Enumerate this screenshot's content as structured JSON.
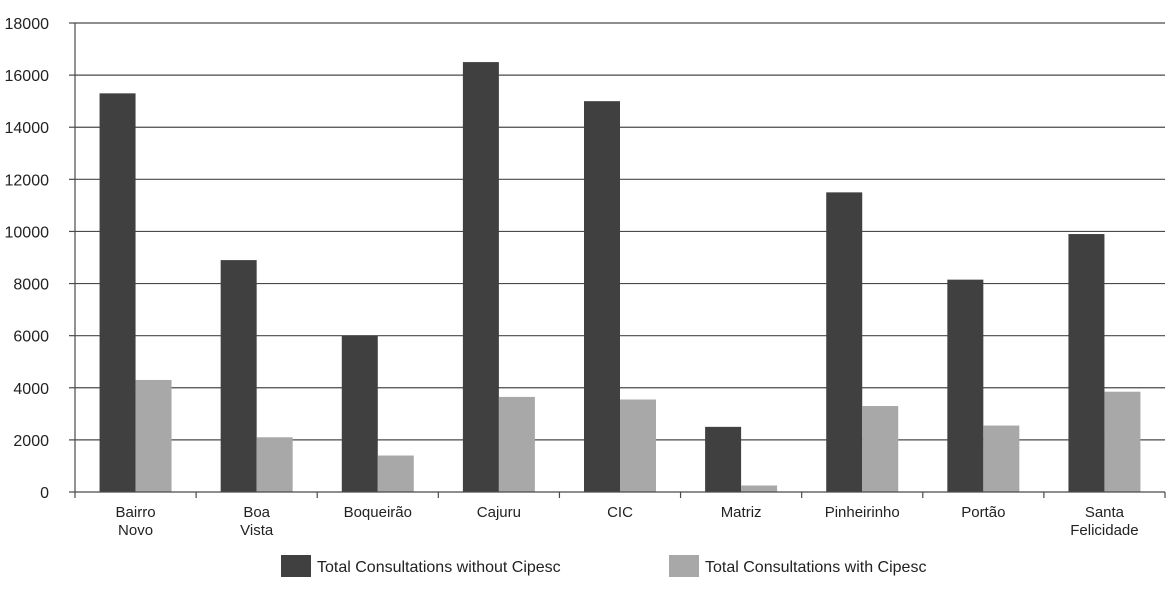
{
  "chart_data": {
    "type": "bar",
    "title": "",
    "xlabel": "",
    "ylabel": "",
    "ylim": [
      0,
      18000
    ],
    "yticks": [
      0,
      2000,
      4000,
      6000,
      8000,
      10000,
      12000,
      14000,
      16000,
      18000
    ],
    "grid": true,
    "legend_position": "bottom",
    "categories": [
      [
        "Bairro",
        "Novo"
      ],
      [
        "Boa",
        "Vista"
      ],
      [
        "Boqueirão"
      ],
      [
        "Cajuru"
      ],
      [
        "CIC"
      ],
      [
        "Matriz"
      ],
      [
        "Pinheirinho"
      ],
      [
        "Portão"
      ],
      [
        "Santa",
        "Felicidade"
      ]
    ],
    "series": [
      {
        "name": "Total Consultations without Cipesc",
        "color": "#404040",
        "values": [
          15300,
          8900,
          6000,
          16500,
          15000,
          2500,
          11500,
          8150,
          9900
        ]
      },
      {
        "name": "Total Consultations with Cipesc",
        "color": "#a8a8a8",
        "values": [
          4300,
          2100,
          1400,
          3650,
          3550,
          250,
          3300,
          2550,
          3850
        ]
      }
    ]
  }
}
